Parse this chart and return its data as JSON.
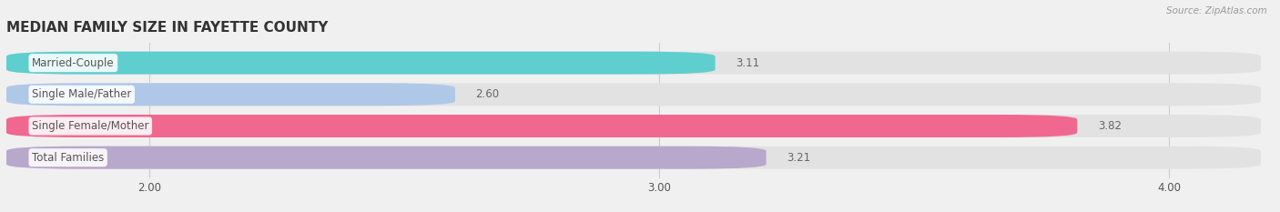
{
  "title": "MEDIAN FAMILY SIZE IN FAYETTE COUNTY",
  "source_text": "Source: ZipAtlas.com",
  "categories": [
    "Married-Couple",
    "Single Male/Father",
    "Single Female/Mother",
    "Total Families"
  ],
  "values": [
    3.11,
    2.6,
    3.82,
    3.21
  ],
  "bar_colors": [
    "#5ecece",
    "#b0c8e8",
    "#f06890",
    "#b8a8cc"
  ],
  "xlim_min": 1.72,
  "xlim_max": 4.18,
  "xticks": [
    2.0,
    3.0,
    4.0
  ],
  "xtick_labels": [
    "2.00",
    "3.00",
    "4.00"
  ],
  "background_color": "#f0f0f0",
  "bar_bg_color": "#e2e2e2",
  "label_color": "#555555",
  "value_color": "#666666",
  "title_color": "#333333",
  "source_color": "#999999",
  "title_fontsize": 11,
  "label_fontsize": 8.5,
  "value_fontsize": 8.5,
  "tick_fontsize": 8.5
}
